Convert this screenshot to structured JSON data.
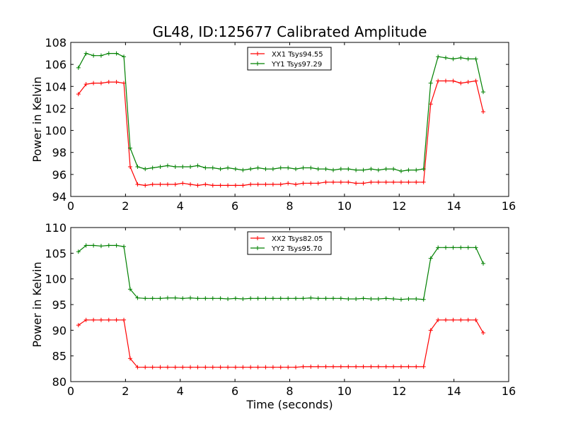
{
  "chart_data": [
    {
      "type": "line",
      "title": "GL48, ID:125677 Calibrated Amplitude",
      "xlabel": "",
      "ylabel": "Power in Kelvin",
      "xlim": [
        0,
        16
      ],
      "ylim": [
        94,
        108
      ],
      "xticks": [
        0,
        2,
        4,
        6,
        8,
        10,
        12,
        14,
        16
      ],
      "yticks": [
        94,
        96,
        98,
        100,
        102,
        104,
        106,
        108
      ],
      "grid": false,
      "legend_position": "top-center",
      "x": [
        0.28,
        0.56,
        0.83,
        1.11,
        1.39,
        1.67,
        1.94,
        2.17,
        2.44,
        2.72,
        2.99,
        3.27,
        3.54,
        3.82,
        4.09,
        4.37,
        4.64,
        4.92,
        5.19,
        5.47,
        5.74,
        6.02,
        6.29,
        6.57,
        6.84,
        7.12,
        7.39,
        7.67,
        7.94,
        8.22,
        8.49,
        8.77,
        9.04,
        9.32,
        9.59,
        9.87,
        10.14,
        10.42,
        10.69,
        10.97,
        11.24,
        11.52,
        11.79,
        12.07,
        12.34,
        12.62,
        12.89,
        13.15,
        13.42,
        13.7,
        13.97,
        14.25,
        14.52,
        14.8,
        15.07
      ],
      "series": [
        {
          "name": "XX1 Tsys94.55",
          "color": "#ff0000",
          "values": [
            103.3,
            104.2,
            104.3,
            104.3,
            104.4,
            104.4,
            104.3,
            96.7,
            95.1,
            95.0,
            95.1,
            95.1,
            95.1,
            95.1,
            95.2,
            95.1,
            95.0,
            95.1,
            95.0,
            95.0,
            95.0,
            95.0,
            95.0,
            95.1,
            95.1,
            95.1,
            95.1,
            95.1,
            95.2,
            95.1,
            95.2,
            95.2,
            95.2,
            95.3,
            95.3,
            95.3,
            95.3,
            95.2,
            95.2,
            95.3,
            95.3,
            95.3,
            95.3,
            95.3,
            95.3,
            95.3,
            95.3,
            102.4,
            104.5,
            104.5,
            104.5,
            104.3,
            104.4,
            104.5,
            101.7
          ]
        },
        {
          "name": "YY1 Tsys97.29",
          "color": "#008000",
          "values": [
            105.7,
            107.0,
            106.8,
            106.8,
            107.0,
            107.0,
            106.7,
            98.4,
            96.7,
            96.5,
            96.6,
            96.7,
            96.8,
            96.7,
            96.7,
            96.7,
            96.8,
            96.6,
            96.6,
            96.5,
            96.6,
            96.5,
            96.4,
            96.5,
            96.6,
            96.5,
            96.5,
            96.6,
            96.6,
            96.5,
            96.6,
            96.6,
            96.5,
            96.5,
            96.4,
            96.5,
            96.5,
            96.4,
            96.4,
            96.5,
            96.4,
            96.5,
            96.5,
            96.3,
            96.4,
            96.4,
            96.5,
            104.3,
            106.7,
            106.6,
            106.5,
            106.6,
            106.5,
            106.5,
            103.5
          ]
        }
      ]
    },
    {
      "type": "line",
      "title": "",
      "xlabel": "Time (seconds)",
      "ylabel": "Power in Kelvin",
      "xlim": [
        0,
        16
      ],
      "ylim": [
        80,
        110
      ],
      "xticks": [
        0,
        2,
        4,
        6,
        8,
        10,
        12,
        14,
        16
      ],
      "yticks": [
        80,
        85,
        90,
        95,
        100,
        105,
        110
      ],
      "grid": false,
      "legend_position": "top-center",
      "x": [
        0.28,
        0.56,
        0.83,
        1.11,
        1.39,
        1.67,
        1.94,
        2.17,
        2.44,
        2.72,
        2.99,
        3.27,
        3.54,
        3.82,
        4.09,
        4.37,
        4.64,
        4.92,
        5.19,
        5.47,
        5.74,
        6.02,
        6.29,
        6.57,
        6.84,
        7.12,
        7.39,
        7.67,
        7.94,
        8.22,
        8.49,
        8.77,
        9.04,
        9.32,
        9.59,
        9.87,
        10.14,
        10.42,
        10.69,
        10.97,
        11.24,
        11.52,
        11.79,
        12.07,
        12.34,
        12.62,
        12.89,
        13.15,
        13.42,
        13.7,
        13.97,
        14.25,
        14.52,
        14.8,
        15.07
      ],
      "series": [
        {
          "name": "XX2 Tsys82.05",
          "color": "#ff0000",
          "values": [
            91.0,
            92.0,
            92.0,
            92.0,
            92.0,
            92.0,
            92.0,
            84.5,
            82.8,
            82.8,
            82.8,
            82.8,
            82.8,
            82.8,
            82.8,
            82.8,
            82.8,
            82.8,
            82.8,
            82.8,
            82.8,
            82.8,
            82.8,
            82.8,
            82.8,
            82.8,
            82.8,
            82.8,
            82.8,
            82.8,
            82.9,
            82.9,
            82.9,
            82.9,
            82.9,
            82.9,
            82.9,
            82.9,
            82.9,
            82.9,
            82.9,
            82.9,
            82.9,
            82.9,
            82.9,
            82.9,
            82.9,
            90.0,
            92.0,
            92.0,
            92.0,
            92.0,
            92.0,
            92.0,
            89.5
          ]
        },
        {
          "name": "YY2 Tsys95.70",
          "color": "#008000",
          "values": [
            105.3,
            106.5,
            106.5,
            106.4,
            106.5,
            106.5,
            106.3,
            98.0,
            96.3,
            96.2,
            96.2,
            96.2,
            96.3,
            96.3,
            96.2,
            96.3,
            96.2,
            96.2,
            96.2,
            96.2,
            96.1,
            96.2,
            96.1,
            96.2,
            96.2,
            96.2,
            96.2,
            96.2,
            96.2,
            96.2,
            96.2,
            96.3,
            96.2,
            96.2,
            96.2,
            96.2,
            96.1,
            96.1,
            96.2,
            96.1,
            96.1,
            96.2,
            96.1,
            96.0,
            96.1,
            96.1,
            96.0,
            104.0,
            106.1,
            106.1,
            106.1,
            106.1,
            106.1,
            106.1,
            103.0
          ]
        }
      ]
    }
  ]
}
